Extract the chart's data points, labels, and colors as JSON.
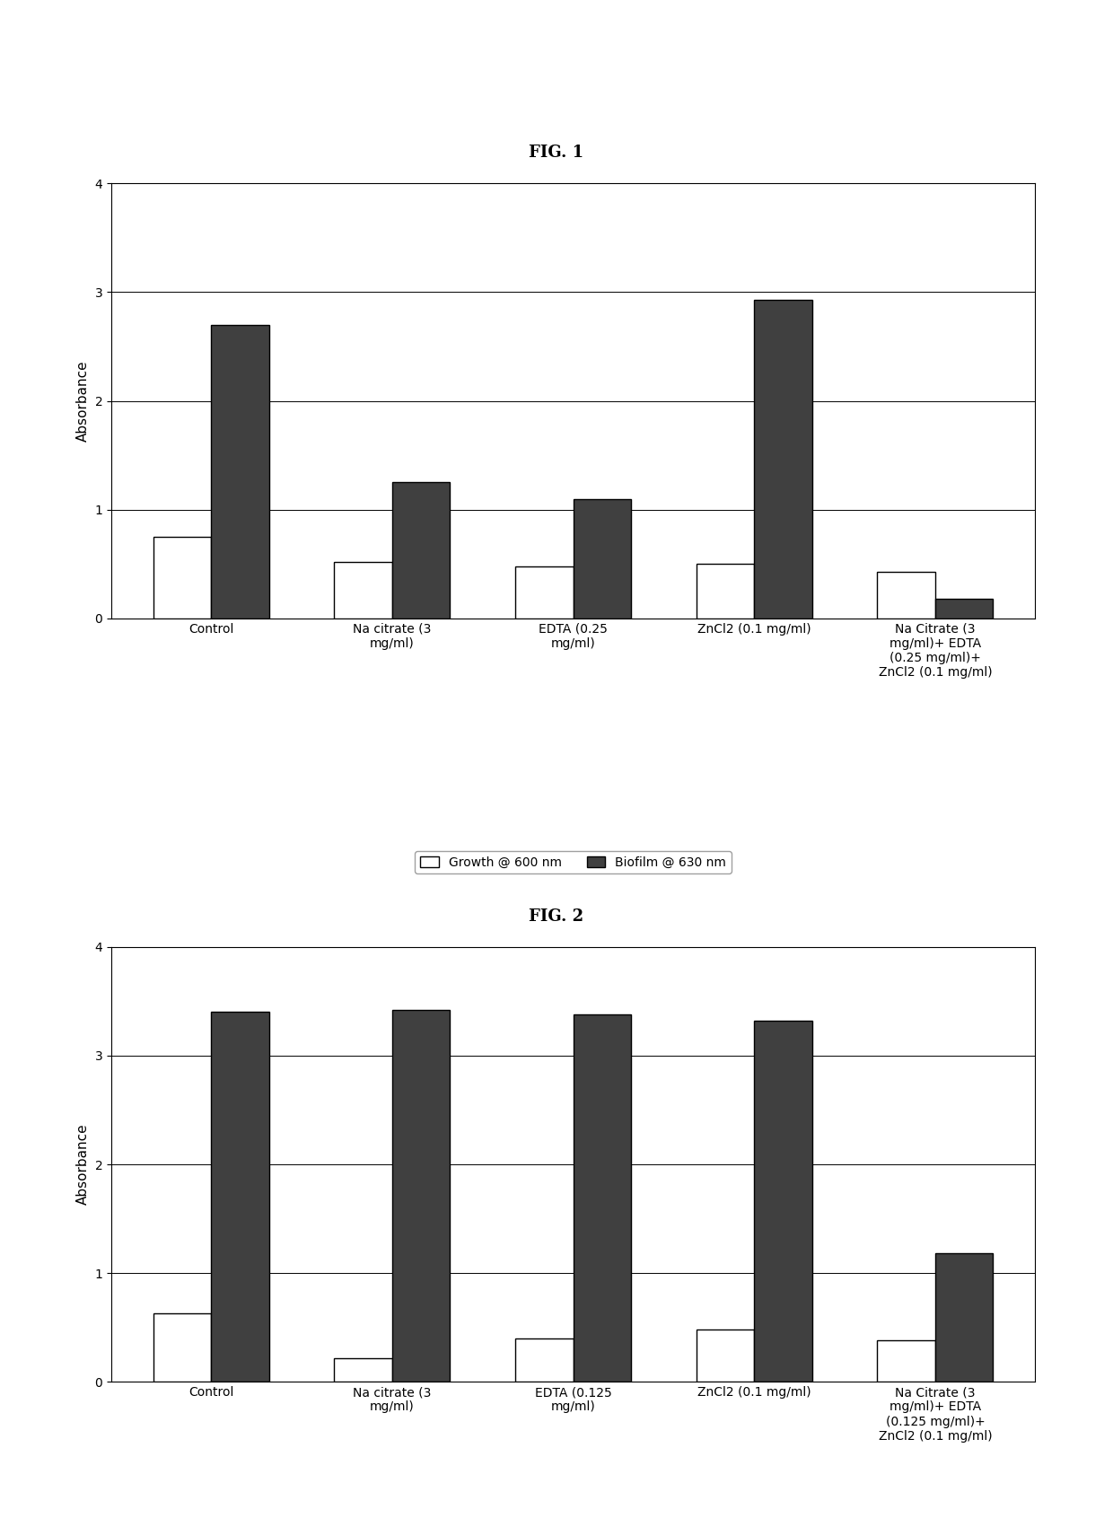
{
  "fig1": {
    "title": "FIG. 1",
    "categories": [
      "Control",
      "Na citrate (3\nmg/ml)",
      "EDTA (0.25\nmg/ml)",
      "ZnCl2 (0.1 mg/ml)",
      "Na Citrate (3\nmg/ml)+ EDTA\n(0.25 mg/ml)+\nZnCl2 (0.1 mg/ml)"
    ],
    "growth": [
      0.75,
      0.52,
      0.48,
      0.5,
      0.43
    ],
    "biofilm": [
      2.7,
      1.25,
      1.1,
      2.93,
      0.18
    ],
    "ylabel": "Absorbance",
    "ylim": [
      0,
      4
    ],
    "yticks": [
      0,
      1,
      2,
      3,
      4
    ]
  },
  "fig2": {
    "title": "FIG. 2",
    "categories": [
      "Control",
      "Na citrate (3\nmg/ml)",
      "EDTA (0.125\nmg/ml)",
      "ZnCl2 (0.1 mg/ml)",
      "Na Citrate (3\nmg/ml)+ EDTA\n(0.125 mg/ml)+\nZnCl2 (0.1 mg/ml)"
    ],
    "growth": [
      0.63,
      0.22,
      0.4,
      0.48,
      0.38
    ],
    "biofilm": [
      3.4,
      3.42,
      3.38,
      3.32,
      1.18
    ],
    "ylabel": "Absorbance",
    "ylim": [
      0,
      4
    ],
    "yticks": [
      0,
      1,
      2,
      3,
      4
    ]
  },
  "legend_growth": "Growth @ 600 nm",
  "legend_biofilm": "Biofilm @ 630 nm",
  "bar_color_growth": "#ffffff",
  "bar_color_biofilm": "#404040",
  "bar_edge_color": "#000000",
  "background_color": "#ffffff",
  "title_fontsize": 13,
  "axis_label_fontsize": 11,
  "tick_fontsize": 10,
  "legend_fontsize": 10,
  "bar_width": 0.32
}
